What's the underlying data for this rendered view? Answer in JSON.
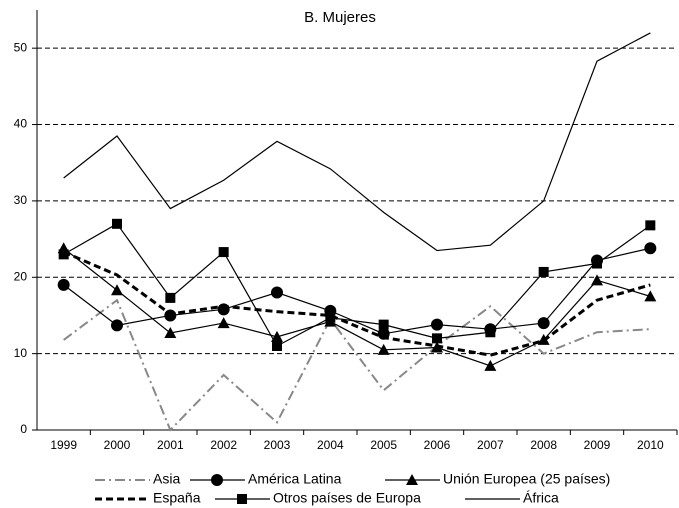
{
  "chart_data": {
    "type": "line",
    "title": "B. Mujeres",
    "categories": [
      "1999",
      "2000",
      "2001",
      "2002",
      "2003",
      "2004",
      "2005",
      "2006",
      "2007",
      "2008",
      "2009",
      "2010"
    ],
    "ylim": [
      0,
      55
    ],
    "yticks": [
      0,
      10,
      20,
      30,
      40,
      50
    ],
    "grid": true,
    "series": [
      {
        "name": "Asia",
        "color": "#888888",
        "dash": "dashdot",
        "marker": "none",
        "values": [
          11.8,
          17,
          0,
          7.2,
          1,
          14.5,
          5.2,
          11,
          16.2,
          10,
          12.8,
          13.2
        ]
      },
      {
        "name": "América Latina",
        "color": "#000000",
        "dash": "solid",
        "marker": "circle",
        "values": [
          19,
          13.7,
          15,
          15.8,
          18,
          15.6,
          12.6,
          13.8,
          13.2,
          14,
          22.2,
          23.8
        ]
      },
      {
        "name": "Unión Europea (25 países)",
        "color": "#000000",
        "dash": "solid",
        "marker": "triangle",
        "values": [
          23.8,
          18.3,
          12.7,
          14,
          12.2,
          14.2,
          10.5,
          10.8,
          8.4,
          11.8,
          19.6,
          17.5
        ]
      },
      {
        "name": "España",
        "color": "#000000",
        "dash": "thickdash",
        "marker": "none",
        "values": [
          23.3,
          20.3,
          15.2,
          16.2,
          15.5,
          15,
          12.1,
          11,
          9.8,
          11.7,
          17,
          19
        ]
      },
      {
        "name": "Otros países de Europa",
        "color": "#000000",
        "dash": "solid",
        "marker": "square",
        "values": [
          23,
          27,
          17.3,
          23.3,
          11,
          14.7,
          13.8,
          12,
          12.8,
          20.7,
          21.8,
          26.8
        ]
      },
      {
        "name": "África",
        "color": "#000000",
        "dash": "solid",
        "marker": "none",
        "values": [
          33,
          38.5,
          29,
          32.7,
          37.8,
          34.2,
          28.5,
          23.5,
          24.2,
          30,
          48.3,
          52
        ]
      }
    ]
  }
}
